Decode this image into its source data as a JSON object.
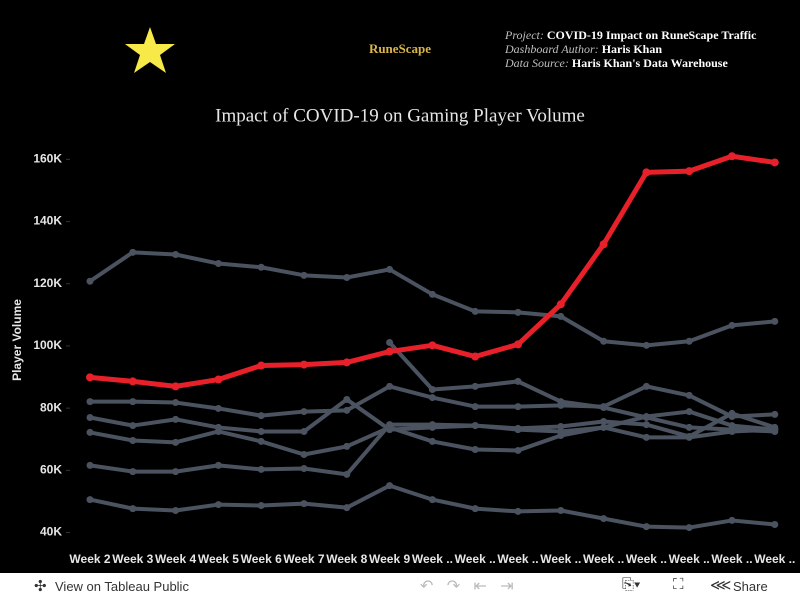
{
  "header": {
    "logo": "RuneScape",
    "meta": [
      {
        "key": "Project:",
        "value": "COVID-19 Impact on RuneScape Traffic"
      },
      {
        "key": "Dashboard Author:",
        "value": "Haris Khan"
      },
      {
        "key": "Data Source:",
        "value": "Haris Khan's Data Warehouse"
      }
    ]
  },
  "chart_data": {
    "type": "line",
    "title": "Impact of COVID-19 on Gaming Player Volume",
    "y_label": "Player Volume",
    "categories": [
      "Week 2",
      "Week 3",
      "Week 4",
      "Week 5",
      "Week 6",
      "Week 7",
      "Week 8",
      "Week 9",
      "Week ..",
      "Week ..",
      "Week ..",
      "Week ..",
      "Week ..",
      "Week ..",
      "Week ..",
      "Week ..",
      "Week .."
    ],
    "ylim": [
      36000,
      163000
    ],
    "yticks": [
      {
        "value": 40000,
        "label": "40K"
      },
      {
        "value": 60000,
        "label": "60K"
      },
      {
        "value": 80000,
        "label": "80K"
      },
      {
        "value": 100000,
        "label": "100K"
      },
      {
        "value": 120000,
        "label": "120K"
      },
      {
        "value": 140000,
        "label": "140K"
      },
      {
        "value": 160000,
        "label": "160K"
      }
    ],
    "series": [
      {
        "color": "#4b5360",
        "values": [
          120800,
          130100,
          129400,
          126500,
          125300,
          122700,
          122000,
          124600,
          116600,
          111100,
          110800,
          109500,
          101500,
          100200,
          101500,
          106600,
          107900
        ]
      },
      {
        "color": "#4b5360",
        "values": [
          82100,
          82100,
          81800,
          79900,
          77600,
          78900,
          79300,
          87000,
          83400,
          80500,
          80500,
          80900,
          80500,
          87000,
          84100,
          77300,
          78000
        ]
      },
      {
        "color": "#4b5360",
        "values": [
          77000,
          74400,
          76400,
          73800,
          72500,
          72500,
          82800,
          73100,
          73800,
          74400,
          73500,
          74100,
          75700,
          74700,
          70900,
          78300,
          73800
        ]
      },
      {
        "color": "#4b5360",
        "values": [
          72200,
          69600,
          69000,
          72500,
          69300,
          65100,
          67700,
          73800,
          69300,
          66700,
          66400,
          71200,
          73800,
          70600,
          70600,
          72500,
          73100
        ]
      },
      {
        "color": "#4b5360",
        "values": [
          61600,
          59600,
          59600,
          61600,
          60300,
          60600,
          58700,
          74700,
          74700,
          74400,
          73100,
          72500,
          73800,
          77300,
          78900,
          74400,
          73100
        ]
      },
      {
        "color": "#4b5360",
        "values": [
          50600,
          47700,
          47100,
          49000,
          48700,
          49300,
          48000,
          55100,
          50600,
          47700,
          46800,
          47100,
          44500,
          41900,
          41600,
          43900,
          42600
        ]
      },
      {
        "color": "#4b5360",
        "values": [
          null,
          null,
          null,
          null,
          null,
          null,
          null,
          101100,
          86000,
          87000,
          88600,
          82100,
          80200,
          77000,
          73800,
          73100,
          72500
        ]
      },
      {
        "color": "#e8202a",
        "values": [
          89900,
          88600,
          87000,
          89200,
          93700,
          94000,
          94700,
          98200,
          100200,
          96600,
          100500,
          113400,
          132700,
          155800,
          156200,
          161000,
          159000
        ]
      }
    ]
  },
  "toolbar": {
    "view": "View on Tableau Public",
    "share": "Share"
  }
}
